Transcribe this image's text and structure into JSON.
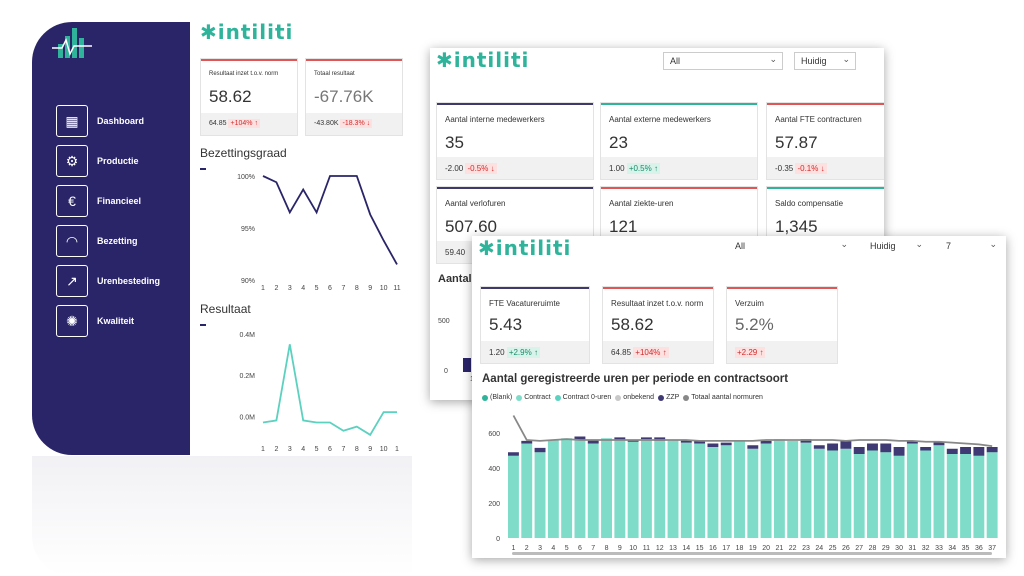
{
  "brand": {
    "name": "intiliti"
  },
  "sidebar": {
    "items": [
      {
        "label": "Dashboard",
        "icon": "dashboard-icon"
      },
      {
        "label": "Productie",
        "icon": "gear-icon"
      },
      {
        "label": "Financieel",
        "icon": "euro-icon"
      },
      {
        "label": "Bezetting",
        "icon": "gauge-icon"
      },
      {
        "label": "Urenbesteding",
        "icon": "chart-icon"
      },
      {
        "label": "Kwaliteit",
        "icon": "badge-icon"
      }
    ]
  },
  "win1": {
    "kpi1": {
      "title": "Resultaat inzet t.o.v. norm",
      "value": "58.62",
      "base": "64.85",
      "delta": "+104%",
      "arrow": "↑"
    },
    "kpi2": {
      "title": "Totaal resultaat",
      "value": "-67.76K",
      "base": "-43.80K",
      "delta": "-18.3%",
      "arrow": "↓"
    },
    "chart1_title": "Bezettingsgraad",
    "chart2_title": "Resultaat"
  },
  "win2": {
    "filter1": "All",
    "filter2": "Huidig",
    "cards": [
      {
        "title": "Aantal interne medewerkers",
        "value": "35",
        "base": "-2.00",
        "delta": "-0.5%",
        "arrow": "↓",
        "color": "#3d3a6b",
        "kind": "neg"
      },
      {
        "title": "Aantal externe medewerkers",
        "value": "23",
        "base": "1.00",
        "delta": "+0.5%",
        "arrow": "↑",
        "color": "#2fb39a",
        "kind": "pos"
      },
      {
        "title": "Aantal FTE contracturen",
        "value": "57.87",
        "base": "-0.35",
        "delta": "-0.1%",
        "arrow": "↓",
        "color": "#e05555",
        "kind": "neg"
      },
      {
        "title": "Aantal verlofuren",
        "value": "507.60",
        "base": "59.40",
        "delta": "",
        "arrow": "",
        "color": "#3d3a6b",
        "kind": "neg"
      },
      {
        "title": "Aantal ziekte-uren",
        "value": "121",
        "base": "",
        "delta": "",
        "arrow": "",
        "color": "#e05555",
        "kind": "neg"
      },
      {
        "title": "Saldo compensatie",
        "value": "1,345",
        "base": "",
        "delta": "",
        "arrow": "",
        "color": "#2fb39a",
        "kind": "pos"
      }
    ],
    "partial_chart_title": "Aantal",
    "partial_ticks": [
      "500",
      "0",
      "1"
    ]
  },
  "win3": {
    "filter1": "All",
    "filter2": "Huidig",
    "filter3": "7",
    "kpi1": {
      "title": "FTE Vacatureruimte",
      "value": "5.43",
      "base": "1.20",
      "delta": "+2.9%",
      "arrow": "↑"
    },
    "kpi2": {
      "title": "Resultaat inzet t.o.v. norm",
      "value": "58.62",
      "base": "64.85",
      "delta": "+104%",
      "arrow": "↑"
    },
    "kpi3": {
      "title": "Verzuim",
      "value": "5.2%",
      "base": "",
      "delta": "+2.29",
      "arrow": "↑"
    }
  },
  "colors": {
    "navy": "#2a2569",
    "teal": "#2fb39a",
    "red": "#e05555",
    "bar": "#7fdcc9",
    "zzp": "#3f3a74",
    "line": "#888888"
  },
  "chart_data": [
    {
      "type": "line",
      "title": "Bezettingsgraad",
      "x": [
        1,
        2,
        3,
        4,
        5,
        6,
        7,
        8,
        9,
        10,
        11
      ],
      "y": [
        100,
        99.4,
        96.5,
        98.7,
        96.5,
        100,
        100,
        100,
        96.3,
        93.8,
        91.5
      ],
      "yticks": [
        "100%",
        "95%",
        "90%"
      ],
      "ylim": [
        90,
        100
      ]
    },
    {
      "type": "line",
      "title": "Resultaat",
      "x": [
        "1",
        "2",
        "3",
        "4",
        "5",
        "6",
        "7",
        "8",
        "9",
        "10",
        "1"
      ],
      "y": [
        -0.03,
        -0.02,
        0.35,
        -0.02,
        -0.03,
        -0.03,
        -0.07,
        -0.05,
        -0.09,
        0.02,
        0.02
      ],
      "yticks": [
        "0.4M",
        "0.2M",
        "0.0M"
      ],
      "ylim": [
        -0.12,
        0.4
      ]
    },
    {
      "type": "bar",
      "title": "Aantal geregistreerde uren per periode en contractsoort",
      "legend": [
        "(Blank)",
        "Contract",
        "Contract 0-uren",
        "onbekend",
        "ZZP",
        "Totaal aantal normuren"
      ],
      "legend_colors": [
        "#2fb39a",
        "#7fdcc9",
        "#5cd1c0",
        "#c9c9c9",
        "#3f3a74",
        "#888888"
      ],
      "categories": [
        "1",
        "2",
        "3",
        "4",
        "5",
        "6",
        "7",
        "8",
        "9",
        "10",
        "11",
        "12",
        "13",
        "14",
        "15",
        "16",
        "17",
        "18",
        "19",
        "20",
        "21",
        "22",
        "23",
        "24",
        "25",
        "26",
        "27",
        "28",
        "29",
        "30",
        "31",
        "32",
        "33",
        "34",
        "35",
        "36",
        "37"
      ],
      "contract": [
        470,
        540,
        490,
        560,
        570,
        560,
        540,
        570,
        560,
        550,
        565,
        555,
        560,
        545,
        540,
        520,
        530,
        555,
        510,
        540,
        565,
        555,
        545,
        510,
        500,
        510,
        480,
        500,
        490,
        470,
        540,
        500,
        530,
        480,
        480,
        470,
        490
      ],
      "zzp": [
        20,
        15,
        25,
        0,
        0,
        20,
        20,
        0,
        15,
        10,
        10,
        20,
        0,
        15,
        15,
        20,
        15,
        0,
        20,
        15,
        0,
        0,
        20,
        20,
        40,
        50,
        40,
        40,
        50,
        50,
        15,
        20,
        20,
        30,
        40,
        50,
        30
      ],
      "normuren": [
        700,
        560,
        555,
        560,
        565,
        560,
        560,
        560,
        560,
        560,
        560,
        560,
        560,
        560,
        555,
        555,
        555,
        555,
        555,
        560,
        560,
        560,
        560,
        560,
        560,
        555,
        560,
        560,
        560,
        555,
        555,
        550,
        550,
        545,
        540,
        535,
        525
      ],
      "yticks": [
        "600",
        "400",
        "200",
        "0"
      ],
      "ylim": [
        0,
        720
      ]
    }
  ]
}
